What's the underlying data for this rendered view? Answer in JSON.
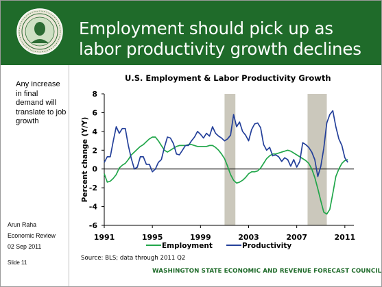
{
  "slide": {
    "title": "Employment should pick up as labor productivity growth declines",
    "sidebar_note": "Any increase in final demand will translate to job growth",
    "author": "Arun Raha",
    "event": "Economic Review",
    "date": "02 Sep 2011",
    "slide_label": "Slide 11",
    "source": "Source: BLS; data through 2011 Q2",
    "footer": "WASHINGTON STATE ECONOMIC AND REVENUE FORECAST COUNCIL"
  },
  "colors": {
    "header_bg": "#1f6b2a",
    "employment": "#21a64a",
    "productivity": "#24409a",
    "recession": "#cbc8bc"
  },
  "chart_data": {
    "type": "line",
    "title": "U.S. Employment & Labor Productivity Growth",
    "ylabel": "Percent change (Y/Y)",
    "xlabel": "",
    "xlim": [
      1991.0,
      2011.75
    ],
    "ylim": [
      -6,
      8
    ],
    "yticks": [
      -6,
      -4,
      -2,
      0,
      2,
      4,
      6,
      8
    ],
    "xticks": [
      1991,
      1995,
      1999,
      2003,
      2007,
      2011
    ],
    "legend_position": "bottom",
    "grid": false,
    "recessions": [
      [
        2001.0,
        2001.9
      ],
      [
        2007.9,
        2009.5
      ]
    ],
    "series": [
      {
        "name": "Employment",
        "x": [
          1991.0,
          1991.25,
          1991.5,
          1991.75,
          1992.0,
          1992.25,
          1992.5,
          1992.75,
          1993.0,
          1993.25,
          1993.5,
          1993.75,
          1994.0,
          1994.25,
          1994.5,
          1994.75,
          1995.0,
          1995.25,
          1995.5,
          1995.75,
          1996.0,
          1996.25,
          1996.5,
          1996.75,
          1997.0,
          1997.25,
          1997.5,
          1997.75,
          1998.0,
          1998.25,
          1998.5,
          1998.75,
          1999.0,
          1999.25,
          1999.5,
          1999.75,
          2000.0,
          2000.25,
          2000.5,
          2000.75,
          2001.0,
          2001.25,
          2001.5,
          2001.75,
          2002.0,
          2002.25,
          2002.5,
          2002.75,
          2003.0,
          2003.25,
          2003.5,
          2003.75,
          2004.0,
          2004.25,
          2004.5,
          2004.75,
          2005.0,
          2005.25,
          2005.5,
          2005.75,
          2006.0,
          2006.25,
          2006.5,
          2006.75,
          2007.0,
          2007.25,
          2007.5,
          2007.75,
          2008.0,
          2008.25,
          2008.5,
          2008.75,
          2009.0,
          2009.25,
          2009.5,
          2009.75,
          2010.0,
          2010.25,
          2010.5,
          2010.75,
          2011.0,
          2011.25
        ],
        "values": [
          -0.5,
          -1.4,
          -1.3,
          -1.0,
          -0.6,
          0.1,
          0.4,
          0.6,
          1.0,
          1.5,
          1.8,
          2.1,
          2.4,
          2.6,
          2.9,
          3.2,
          3.4,
          3.4,
          3.0,
          2.5,
          2.0,
          1.8,
          2.0,
          2.2,
          2.4,
          2.5,
          2.5,
          2.5,
          2.6,
          2.6,
          2.5,
          2.4,
          2.4,
          2.4,
          2.4,
          2.5,
          2.5,
          2.3,
          2.0,
          1.6,
          1.1,
          0.3,
          -0.6,
          -1.2,
          -1.5,
          -1.4,
          -1.2,
          -0.9,
          -0.5,
          -0.3,
          -0.3,
          -0.2,
          0.1,
          0.6,
          1.1,
          1.4,
          1.6,
          1.6,
          1.7,
          1.8,
          1.9,
          2.0,
          1.9,
          1.7,
          1.5,
          1.3,
          1.1,
          0.9,
          0.6,
          0.0,
          -0.9,
          -2.1,
          -3.4,
          -4.6,
          -4.8,
          -4.3,
          -2.6,
          -0.8,
          0.0,
          0.6,
          0.9,
          1.0
        ]
      },
      {
        "name": "Productivity",
        "x": [
          1991.0,
          1991.25,
          1991.5,
          1991.75,
          1992.0,
          1992.25,
          1992.5,
          1992.75,
          1993.0,
          1993.25,
          1993.5,
          1993.75,
          1994.0,
          1994.25,
          1994.5,
          1994.75,
          1995.0,
          1995.25,
          1995.5,
          1995.75,
          1996.0,
          1996.25,
          1996.5,
          1996.75,
          1997.0,
          1997.25,
          1997.5,
          1997.75,
          1998.0,
          1998.25,
          1998.5,
          1998.75,
          1999.0,
          1999.25,
          1999.5,
          1999.75,
          2000.0,
          2000.25,
          2000.5,
          2000.75,
          2001.0,
          2001.25,
          2001.5,
          2001.75,
          2002.0,
          2002.25,
          2002.5,
          2002.75,
          2003.0,
          2003.25,
          2003.5,
          2003.75,
          2004.0,
          2004.25,
          2004.5,
          2004.75,
          2005.0,
          2005.25,
          2005.5,
          2005.75,
          2006.0,
          2006.25,
          2006.5,
          2006.75,
          2007.0,
          2007.25,
          2007.5,
          2007.75,
          2008.0,
          2008.25,
          2008.5,
          2008.75,
          2009.0,
          2009.25,
          2009.5,
          2009.75,
          2010.0,
          2010.25,
          2010.5,
          2010.75,
          2011.0,
          2011.25
        ],
        "values": [
          0.7,
          1.3,
          1.3,
          3.0,
          4.5,
          3.8,
          4.3,
          4.3,
          2.5,
          1.1,
          0.0,
          0.2,
          1.3,
          1.3,
          0.5,
          0.5,
          -0.3,
          0.0,
          0.7,
          1.0,
          2.3,
          3.4,
          3.3,
          2.7,
          1.6,
          1.5,
          2.0,
          2.5,
          2.5,
          3.0,
          3.4,
          4.0,
          3.7,
          3.3,
          3.8,
          3.5,
          4.5,
          3.8,
          3.5,
          3.3,
          3.0,
          3.2,
          3.6,
          5.8,
          4.5,
          5.0,
          4.0,
          3.6,
          3.0,
          4.2,
          4.8,
          4.9,
          4.4,
          2.6,
          2.0,
          2.3,
          1.4,
          1.5,
          1.3,
          0.8,
          1.2,
          1.0,
          0.3,
          1.0,
          0.2,
          0.8,
          2.8,
          2.6,
          2.3,
          1.8,
          1.0,
          -0.8,
          0.3,
          2.2,
          4.9,
          5.8,
          6.2,
          4.5,
          3.2,
          2.5,
          1.2,
          0.7
        ]
      }
    ]
  }
}
